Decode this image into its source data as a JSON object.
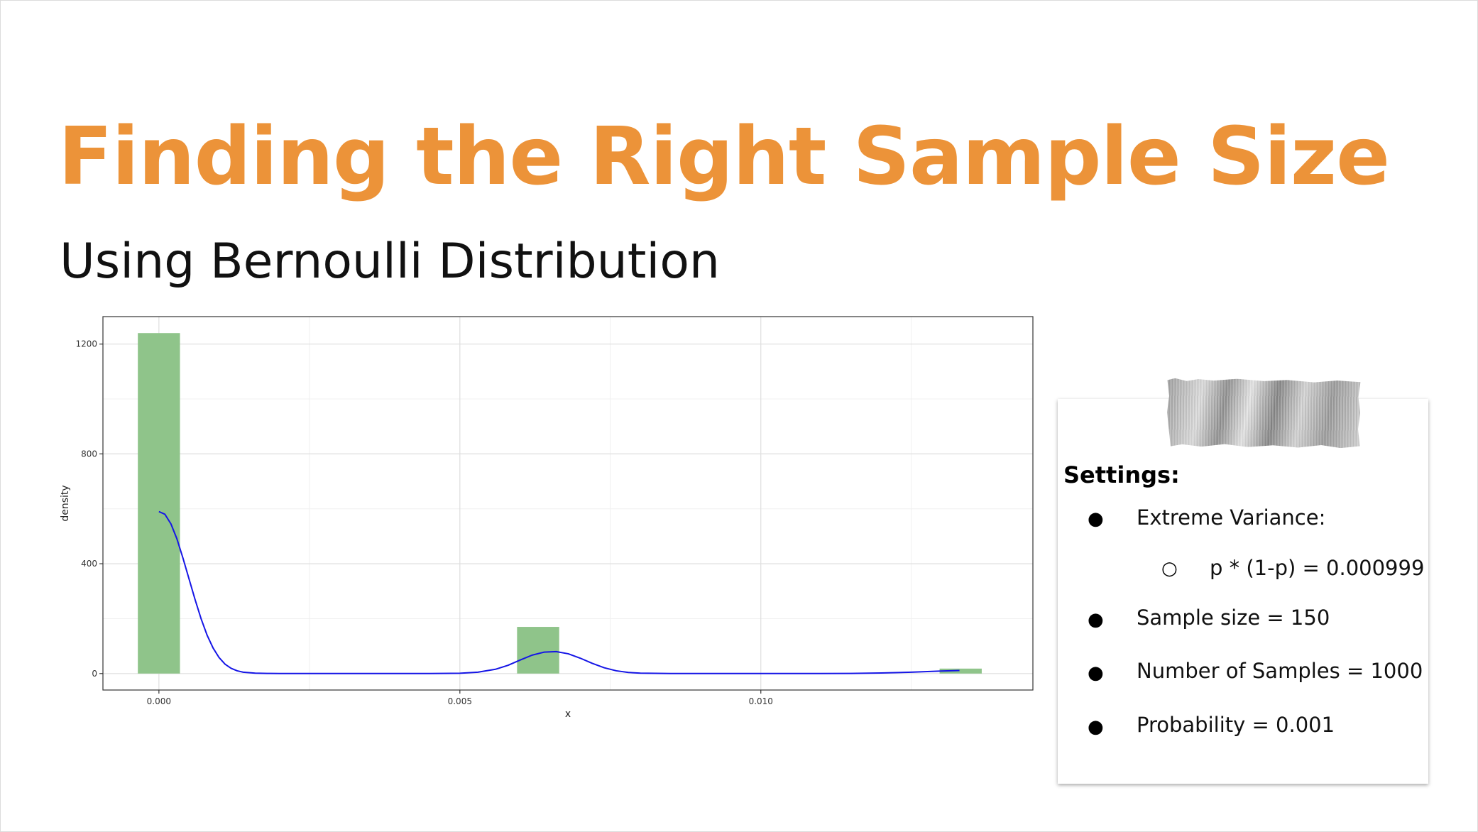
{
  "slide": {
    "title": "Finding the Right Sample Size",
    "subtitle": "Using Bernoulli Distribution",
    "title_color": "#ec9339"
  },
  "settings": {
    "heading": "Settings:",
    "items": [
      {
        "level": 1,
        "bullet": "●",
        "text": "Extreme Variance:"
      },
      {
        "level": 2,
        "bullet": "○",
        "text": "p * (1-p) = 0.000999"
      },
      {
        "level": 1,
        "bullet": "●",
        "text": "Sample size = 150"
      },
      {
        "level": 1,
        "bullet": "●",
        "text": "Number of Samples = 1000"
      },
      {
        "level": 1,
        "bullet": "●",
        "text": "Probability = 0.001"
      }
    ]
  },
  "chart_data": {
    "type": "bar",
    "title": "",
    "xlabel": "x",
    "ylabel": "density",
    "xlim": [
      -0.00093,
      0.01452
    ],
    "ylim": [
      -60,
      1300
    ],
    "xticks": [
      "0.000",
      "0.005",
      "0.010"
    ],
    "xtick_values": [
      0,
      0.005,
      0.01
    ],
    "yticks": [
      "0",
      "400",
      "800",
      "1200"
    ],
    "ytick_values": [
      0,
      400,
      800,
      1200
    ],
    "grid": true,
    "bar_color": "#8fc48a",
    "line_color": "#1515e6",
    "histogram": [
      {
        "x0": -0.00035,
        "x1": 0.00035,
        "density": 1240
      },
      {
        "x0": 0.00595,
        "x1": 0.00665,
        "density": 170
      },
      {
        "x0": 0.01297,
        "x1": 0.01367,
        "density": 18
      }
    ],
    "density_curve": {
      "x": [
        0,
        0.0001,
        0.0002,
        0.0003,
        0.0004,
        0.0005,
        0.0006,
        0.0007,
        0.0008,
        0.0009,
        0.001,
        0.0011,
        0.0012,
        0.0013,
        0.0014,
        0.0016,
        0.0018,
        0.002,
        0.0025,
        0.003,
        0.0035,
        0.004,
        0.0045,
        0.005,
        0.0053,
        0.0056,
        0.0058,
        0.006,
        0.0062,
        0.0064,
        0.0066,
        0.0068,
        0.007,
        0.0072,
        0.0074,
        0.0076,
        0.0078,
        0.008,
        0.0085,
        0.009,
        0.0095,
        0.01,
        0.0105,
        0.011,
        0.0115,
        0.012,
        0.0125,
        0.013,
        0.0133
      ],
      "y": [
        590,
        580,
        545,
        490,
        420,
        345,
        270,
        200,
        140,
        93,
        58,
        34,
        19,
        10,
        5,
        1.5,
        0.5,
        0,
        0,
        0,
        0,
        0,
        0,
        1,
        5,
        16,
        30,
        49,
        67,
        78,
        80,
        72,
        56,
        37,
        21,
        10,
        4,
        1.5,
        0,
        0,
        0,
        0,
        0,
        0,
        0.5,
        2,
        5,
        9,
        11
      ]
    }
  }
}
